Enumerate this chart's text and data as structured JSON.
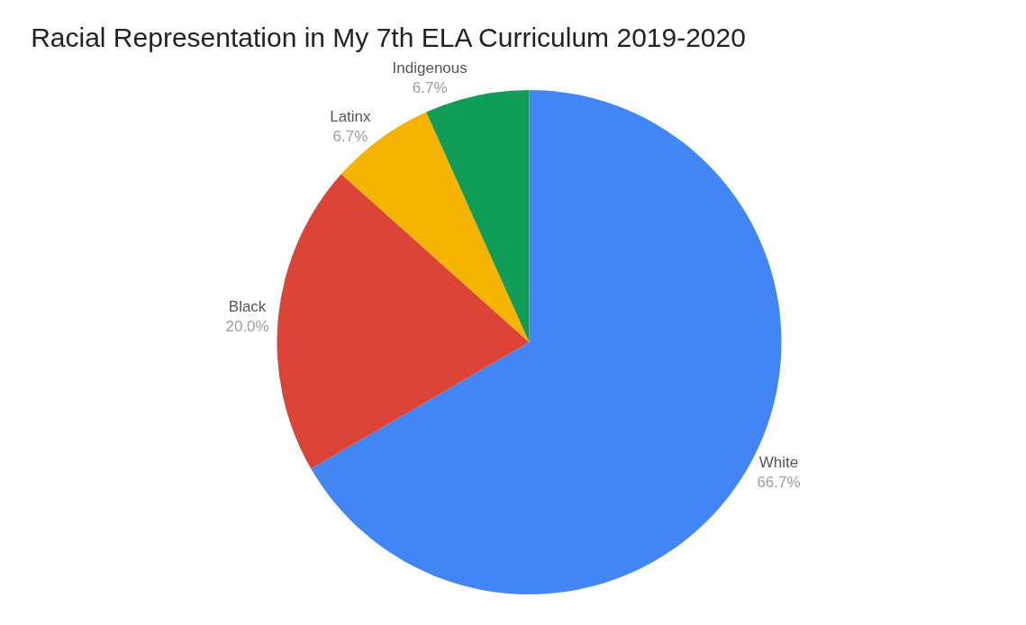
{
  "chart_data": {
    "type": "pie",
    "title": "Racial Representation in My 7th ELA Curriculum 2019-2020",
    "categories": [
      "White",
      "Black",
      "Latinx",
      "Indigenous"
    ],
    "values": [
      66.7,
      20.0,
      6.7,
      6.7
    ],
    "value_labels": [
      "66.7%",
      "20.0%",
      "6.7%",
      "6.7%"
    ],
    "colors": [
      "#4285f4",
      "#db4437",
      "#f4b400",
      "#0f9d58"
    ],
    "legend": false
  }
}
